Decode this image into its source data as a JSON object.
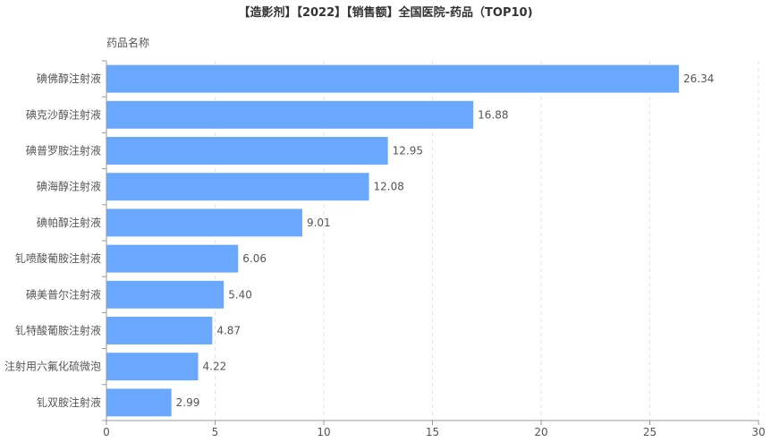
{
  "chart_data": {
    "type": "bar",
    "orientation": "horizontal",
    "title": "【造影剂】【2022】【销售额】全国医院-药品（TOP10)",
    "ylabel": "药品名称",
    "xlabel": "",
    "xlim": [
      0,
      30
    ],
    "xticks": [
      0,
      5,
      10,
      15,
      20,
      25,
      30
    ],
    "grid": true,
    "categories": [
      "碘佛醇注射液",
      "碘克沙醇注射液",
      "碘普罗胺注射液",
      "碘海醇注射液",
      "碘帕醇注射液",
      "钆喷酸葡胺注射液",
      "碘美普尔注射液",
      "钆特酸葡胺注射液",
      "注射用六氟化硫微泡",
      "钆双胺注射液"
    ],
    "values": [
      26.34,
      16.88,
      12.95,
      12.08,
      9.01,
      6.06,
      5.4,
      4.87,
      4.22,
      2.99
    ],
    "value_labels": [
      "26.34",
      "16.88",
      "12.95",
      "12.08",
      "9.01",
      "6.06",
      "5.40",
      "4.87",
      "4.22",
      "2.99"
    ],
    "bar_color": "#6aa8ff",
    "grid_color": "#e3e3e3",
    "axis_color": "#999999"
  }
}
